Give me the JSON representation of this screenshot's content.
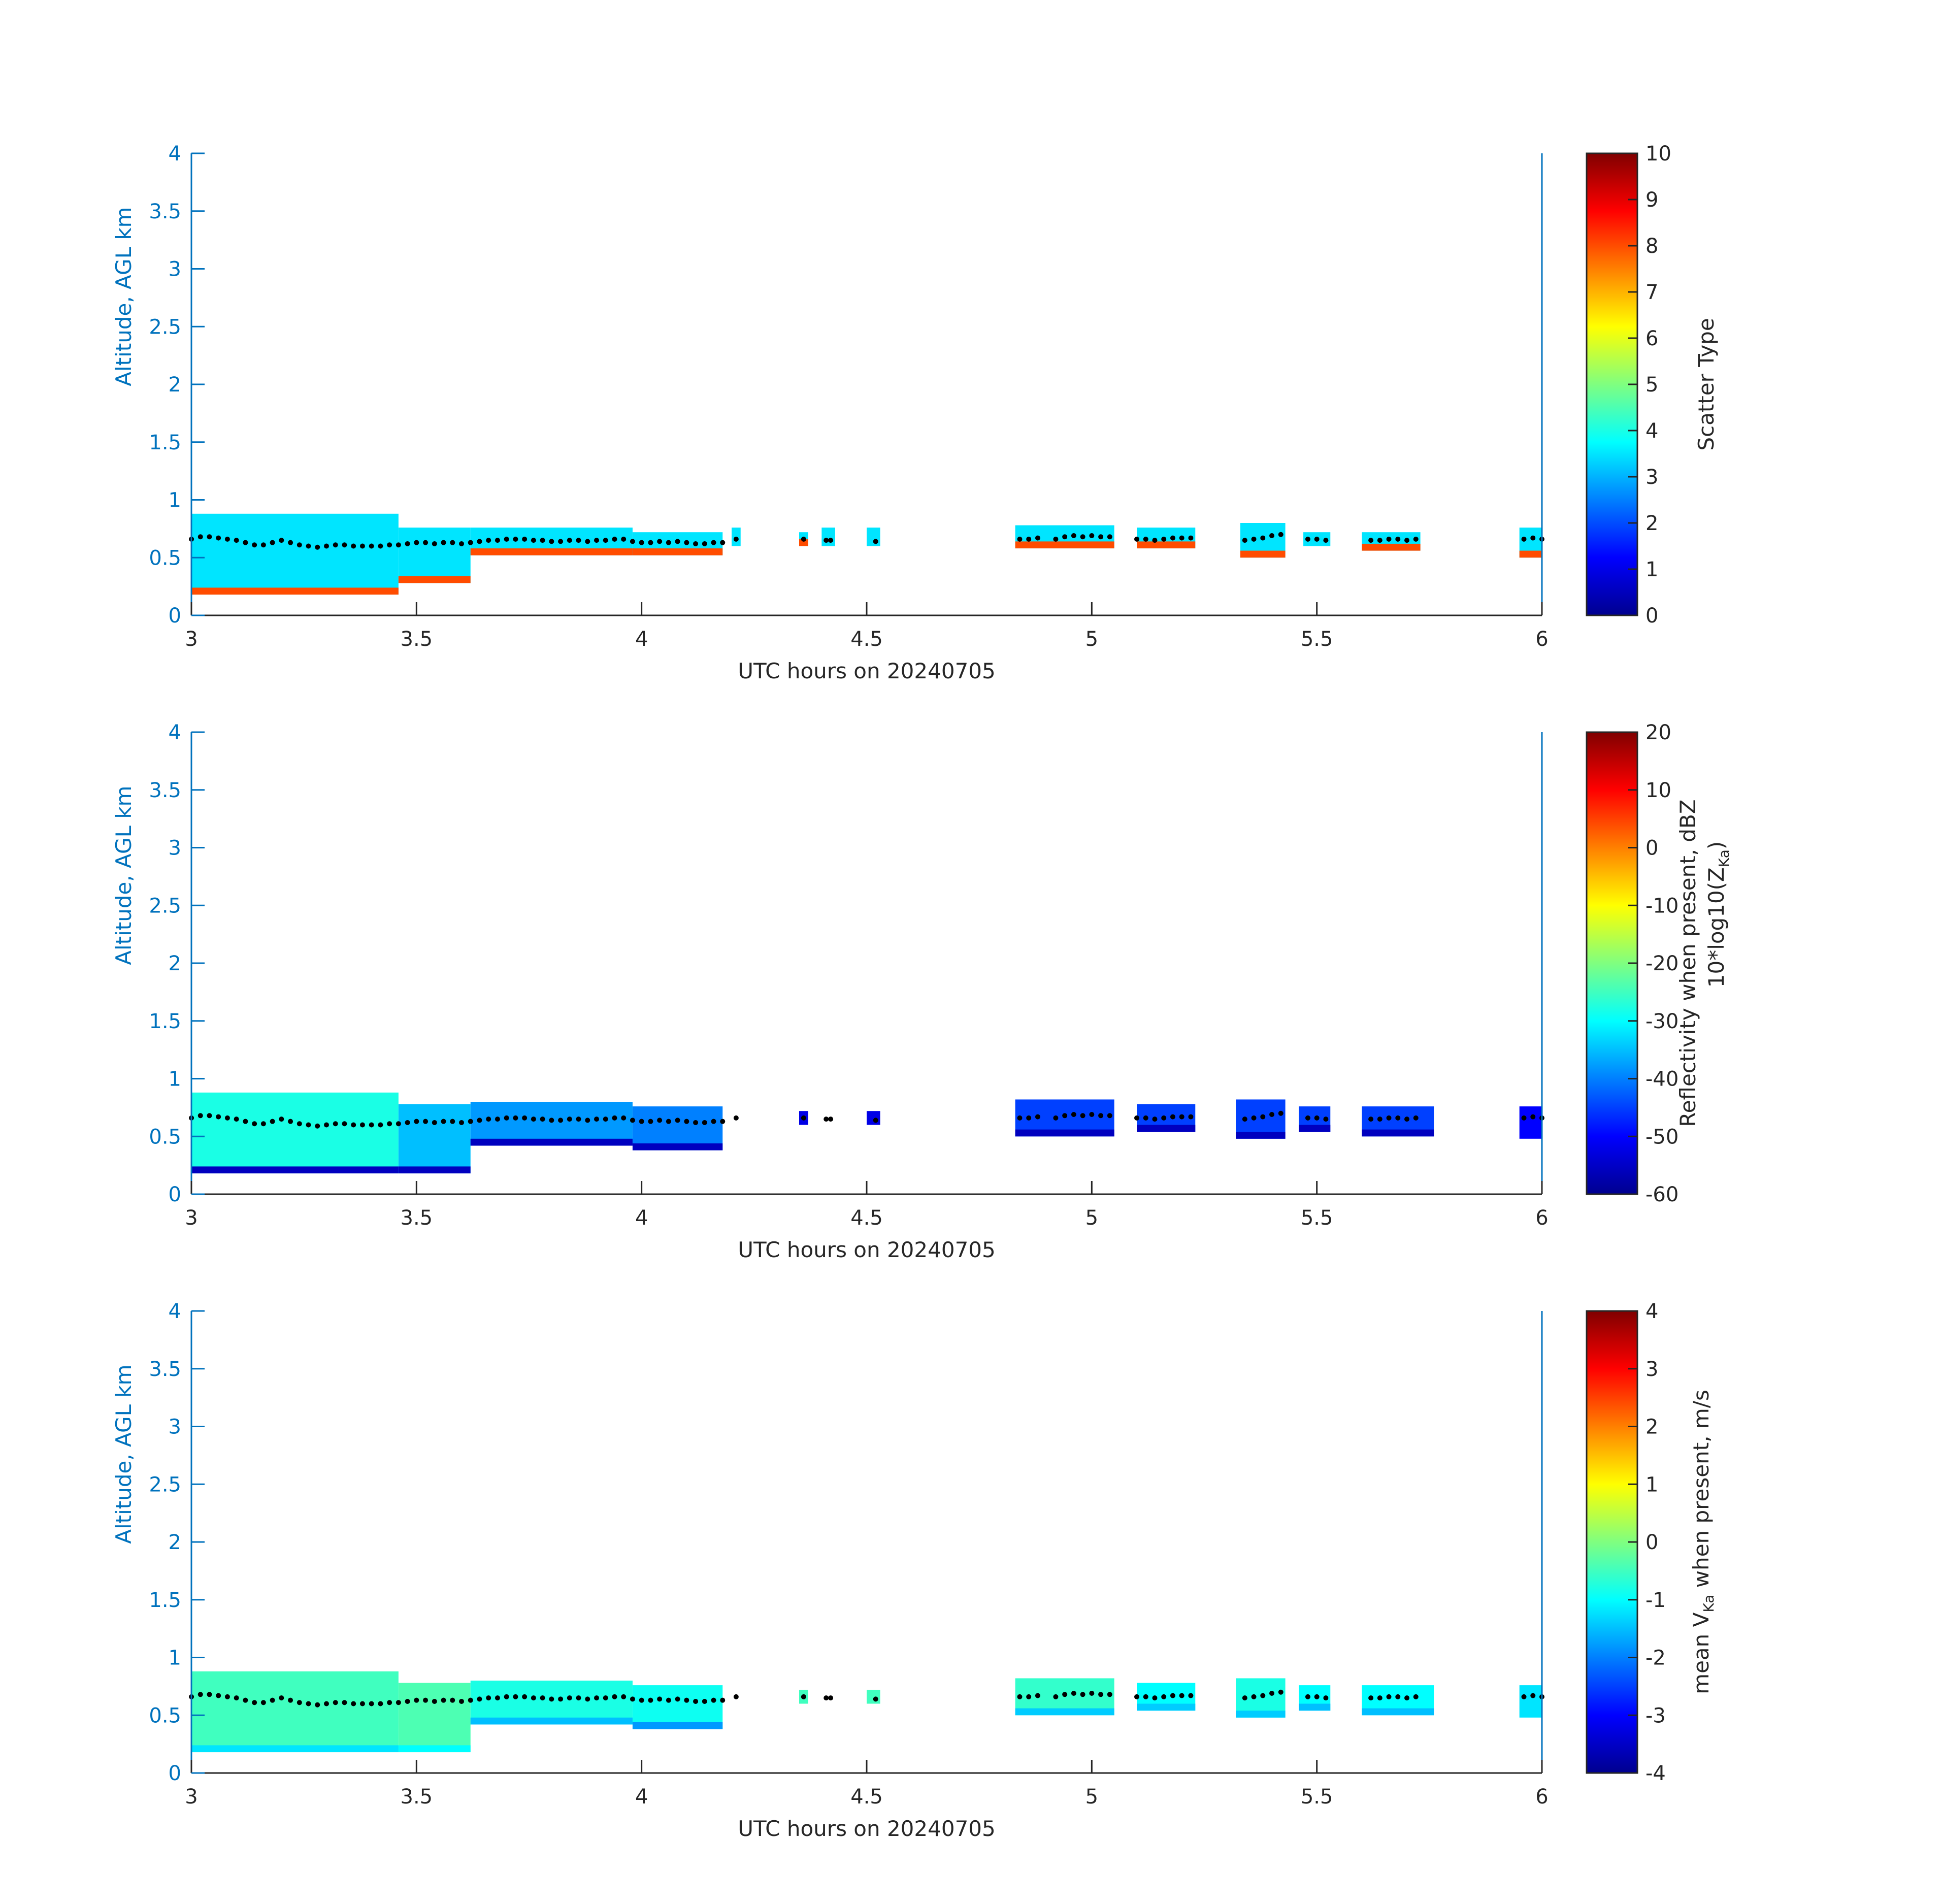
{
  "colors": {
    "axis_blue": "#0072BD",
    "axis_dark": "#262626",
    "background": "#ffffff",
    "cbh_dots": "#000000"
  },
  "chart_data": [
    {
      "type": "heatmap",
      "title": "",
      "xlabel": "UTC hours on 20240705",
      "ylabel": "Altitude, AGL km",
      "xlim": [
        3,
        6
      ],
      "ylim": [
        0,
        4
      ],
      "xticks": [
        "3",
        "3.5",
        "4",
        "4.5",
        "5",
        "5.5",
        "6"
      ],
      "yticks": [
        "0",
        "0.5",
        "1",
        "1.5",
        "2",
        "2.5",
        "3",
        "3.5",
        "4"
      ],
      "colorbar": {
        "label": "Scatter Type",
        "range": [
          0,
          10
        ],
        "ticks": [
          "0",
          "1",
          "2",
          "3",
          "4",
          "5",
          "6",
          "7",
          "8",
          "9",
          "10"
        ]
      },
      "colormap": "jet",
      "segments": [
        {
          "x": [
            3.0,
            3.46
          ],
          "top": 0.88,
          "bottom": 0.18,
          "value": 3.5,
          "edge_value": 8.0
        },
        {
          "x": [
            3.46,
            3.62
          ],
          "top": 0.76,
          "bottom": 0.28,
          "value": 3.5,
          "edge_value": 8.0
        },
        {
          "x": [
            3.62,
            3.98
          ],
          "top": 0.76,
          "bottom": 0.52,
          "value": 3.5,
          "edge_value": 8.0
        },
        {
          "x": [
            3.98,
            4.18
          ],
          "top": 0.72,
          "bottom": 0.52,
          "value": 3.5,
          "edge_value": 8.0
        },
        {
          "x": [
            4.2,
            4.22
          ],
          "top": 0.76,
          "bottom": 0.6,
          "value": 3.5
        },
        {
          "x": [
            4.35,
            4.37
          ],
          "top": 0.72,
          "bottom": 0.6,
          "value": 3.5,
          "edge_value": 8.0
        },
        {
          "x": [
            4.4,
            4.43
          ],
          "top": 0.76,
          "bottom": 0.6,
          "value": 3.5
        },
        {
          "x": [
            4.5,
            4.53
          ],
          "top": 0.76,
          "bottom": 0.6,
          "value": 3.5
        },
        {
          "x": [
            4.83,
            5.05
          ],
          "top": 0.78,
          "bottom": 0.58,
          "value": 3.5,
          "edge_value": 8.0
        },
        {
          "x": [
            5.1,
            5.23
          ],
          "top": 0.76,
          "bottom": 0.58,
          "value": 3.5,
          "edge_value": 8.0
        },
        {
          "x": [
            5.33,
            5.43
          ],
          "top": 0.8,
          "bottom": 0.5,
          "value": 3.5,
          "edge_value": 8.0
        },
        {
          "x": [
            5.47,
            5.53
          ],
          "top": 0.72,
          "bottom": 0.6,
          "value": 3.5
        },
        {
          "x": [
            5.6,
            5.73
          ],
          "top": 0.72,
          "bottom": 0.56,
          "value": 3.5,
          "edge_value": 8.0
        },
        {
          "x": [
            5.95,
            6.0
          ],
          "top": 0.76,
          "bottom": 0.5,
          "value": 3.5,
          "edge_value": 8.0
        }
      ]
    },
    {
      "type": "heatmap",
      "title": "",
      "xlabel": "UTC hours on 20240705",
      "ylabel": "Altitude, AGL km",
      "xlim": [
        3,
        6
      ],
      "ylim": [
        0,
        4
      ],
      "xticks": [
        "3",
        "3.5",
        "4",
        "4.5",
        "5",
        "5.5",
        "6"
      ],
      "yticks": [
        "0",
        "0.5",
        "1",
        "1.5",
        "2",
        "2.5",
        "3",
        "3.5",
        "4"
      ],
      "colorbar": {
        "label_lines": [
          "Reflectivity when present, dBZ",
          "10*log10(Z",
          "Ka",
          ")"
        ],
        "range": [
          -60,
          20
        ],
        "ticks": [
          "-60",
          "-50",
          "-40",
          "-30",
          "-20",
          "-10",
          "0",
          "10",
          "20"
        ]
      },
      "colormap": "jet",
      "segments": [
        {
          "x": [
            3.0,
            3.46
          ],
          "top": 0.88,
          "bottom": 0.18,
          "value": -28,
          "edge_value": -55
        },
        {
          "x": [
            3.46,
            3.62
          ],
          "top": 0.78,
          "bottom": 0.18,
          "value": -35,
          "edge_value": -55
        },
        {
          "x": [
            3.62,
            3.98
          ],
          "top": 0.8,
          "bottom": 0.42,
          "value": -38,
          "edge_value": -55
        },
        {
          "x": [
            3.98,
            4.18
          ],
          "top": 0.76,
          "bottom": 0.38,
          "value": -40,
          "edge_value": -55
        },
        {
          "x": [
            4.35,
            4.37
          ],
          "top": 0.72,
          "bottom": 0.6,
          "value": -52
        },
        {
          "x": [
            4.5,
            4.53
          ],
          "top": 0.72,
          "bottom": 0.6,
          "value": -52
        },
        {
          "x": [
            4.83,
            5.05
          ],
          "top": 0.82,
          "bottom": 0.5,
          "value": -45,
          "edge_value": -55
        },
        {
          "x": [
            5.1,
            5.23
          ],
          "top": 0.78,
          "bottom": 0.54,
          "value": -45,
          "edge_value": -55
        },
        {
          "x": [
            5.32,
            5.43
          ],
          "top": 0.82,
          "bottom": 0.48,
          "value": -45,
          "edge_value": -55
        },
        {
          "x": [
            5.46,
            5.53
          ],
          "top": 0.76,
          "bottom": 0.54,
          "value": -45,
          "edge_value": -55
        },
        {
          "x": [
            5.6,
            5.76
          ],
          "top": 0.76,
          "bottom": 0.5,
          "value": -45,
          "edge_value": -55
        },
        {
          "x": [
            5.95,
            6.0
          ],
          "top": 0.76,
          "bottom": 0.48,
          "value": -50
        }
      ]
    },
    {
      "type": "heatmap",
      "title": "",
      "xlabel": "UTC hours on 20240705",
      "ylabel": "Altitude, AGL km",
      "xlim": [
        3,
        6
      ],
      "ylim": [
        0,
        4
      ],
      "xticks": [
        "3",
        "3.5",
        "4",
        "4.5",
        "5",
        "5.5",
        "6"
      ],
      "yticks": [
        "0",
        "0.5",
        "1",
        "1.5",
        "2",
        "2.5",
        "3",
        "3.5",
        "4"
      ],
      "colorbar": {
        "label_lines": [
          "mean V",
          "Ka",
          " when present, m/s"
        ],
        "range": [
          -4,
          4
        ],
        "ticks": [
          "-4",
          "-3",
          "-2",
          "-1",
          "0",
          "1",
          "2",
          "3",
          "4"
        ]
      },
      "colormap": "jet",
      "segments": [
        {
          "x": [
            3.0,
            3.46
          ],
          "top": 0.88,
          "bottom": 0.18,
          "value": -0.5,
          "edge_value": -1.2
        },
        {
          "x": [
            3.46,
            3.62
          ],
          "top": 0.78,
          "bottom": 0.18,
          "value": -0.4,
          "edge_value": -1.0
        },
        {
          "x": [
            3.62,
            3.98
          ],
          "top": 0.8,
          "bottom": 0.42,
          "value": -0.8,
          "edge_value": -1.5
        },
        {
          "x": [
            3.98,
            4.18
          ],
          "top": 0.76,
          "bottom": 0.38,
          "value": -0.9,
          "edge_value": -1.8
        },
        {
          "x": [
            4.35,
            4.37
          ],
          "top": 0.72,
          "bottom": 0.6,
          "value": -0.5
        },
        {
          "x": [
            4.5,
            4.53
          ],
          "top": 0.72,
          "bottom": 0.6,
          "value": -0.5
        },
        {
          "x": [
            4.83,
            5.05
          ],
          "top": 0.82,
          "bottom": 0.5,
          "value": -0.6,
          "edge_value": -1.4
        },
        {
          "x": [
            5.1,
            5.23
          ],
          "top": 0.78,
          "bottom": 0.54,
          "value": -1.0,
          "edge_value": -1.4
        },
        {
          "x": [
            5.32,
            5.43
          ],
          "top": 0.82,
          "bottom": 0.48,
          "value": -0.8,
          "edge_value": -1.4
        },
        {
          "x": [
            5.46,
            5.53
          ],
          "top": 0.76,
          "bottom": 0.54,
          "value": -1.0,
          "edge_value": -1.5
        },
        {
          "x": [
            5.6,
            5.76
          ],
          "top": 0.76,
          "bottom": 0.5,
          "value": -1.0,
          "edge_value": -1.5
        },
        {
          "x": [
            5.95,
            6.0
          ],
          "top": 0.76,
          "bottom": 0.48,
          "value": -1.2
        }
      ]
    }
  ],
  "cloud_base_dots": {
    "x": [
      3.0,
      3.02,
      3.04,
      3.06,
      3.08,
      3.1,
      3.12,
      3.14,
      3.16,
      3.18,
      3.2,
      3.22,
      3.24,
      3.26,
      3.28,
      3.3,
      3.32,
      3.34,
      3.36,
      3.38,
      3.4,
      3.42,
      3.44,
      3.46,
      3.48,
      3.5,
      3.52,
      3.54,
      3.56,
      3.58,
      3.6,
      3.62,
      3.64,
      3.66,
      3.68,
      3.7,
      3.72,
      3.74,
      3.76,
      3.78,
      3.8,
      3.82,
      3.84,
      3.86,
      3.88,
      3.9,
      3.92,
      3.94,
      3.96,
      3.98,
      4.0,
      4.02,
      4.04,
      4.06,
      4.08,
      4.1,
      4.12,
      4.14,
      4.16,
      4.18,
      4.21,
      4.36,
      4.41,
      4.42,
      4.52,
      4.84,
      4.86,
      4.88,
      4.92,
      4.94,
      4.96,
      4.98,
      5.0,
      5.02,
      5.04,
      5.1,
      5.12,
      5.14,
      5.16,
      5.18,
      5.2,
      5.22,
      5.34,
      5.36,
      5.38,
      5.4,
      5.42,
      5.48,
      5.5,
      5.52,
      5.62,
      5.64,
      5.66,
      5.68,
      5.7,
      5.72,
      5.96,
      5.98,
      6.0
    ],
    "y": [
      0.66,
      0.68,
      0.68,
      0.67,
      0.66,
      0.65,
      0.63,
      0.61,
      0.61,
      0.63,
      0.65,
      0.63,
      0.61,
      0.6,
      0.59,
      0.6,
      0.61,
      0.61,
      0.6,
      0.6,
      0.6,
      0.6,
      0.61,
      0.61,
      0.62,
      0.63,
      0.63,
      0.62,
      0.63,
      0.63,
      0.62,
      0.63,
      0.64,
      0.65,
      0.65,
      0.66,
      0.66,
      0.66,
      0.65,
      0.65,
      0.64,
      0.64,
      0.65,
      0.65,
      0.64,
      0.65,
      0.65,
      0.66,
      0.66,
      0.64,
      0.63,
      0.63,
      0.64,
      0.63,
      0.64,
      0.63,
      0.62,
      0.62,
      0.63,
      0.63,
      0.66,
      0.66,
      0.65,
      0.65,
      0.64,
      0.66,
      0.66,
      0.67,
      0.66,
      0.68,
      0.69,
      0.68,
      0.69,
      0.68,
      0.68,
      0.66,
      0.66,
      0.65,
      0.66,
      0.67,
      0.67,
      0.67,
      0.65,
      0.66,
      0.67,
      0.69,
      0.7,
      0.66,
      0.66,
      0.65,
      0.65,
      0.65,
      0.66,
      0.66,
      0.65,
      0.66,
      0.66,
      0.67,
      0.66
    ]
  }
}
